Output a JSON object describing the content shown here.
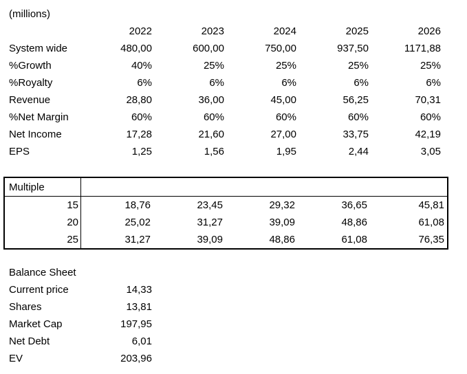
{
  "sheet": {
    "unit_label": "(millions)",
    "colors": {
      "text": "#000000",
      "background": "#ffffff",
      "table_border": "#000000"
    },
    "projections": {
      "years": [
        "2022",
        "2023",
        "2024",
        "2025",
        "2026"
      ],
      "rows": [
        {
          "label": "System wide",
          "values": [
            "480,00",
            "600,00",
            "750,00",
            "937,50",
            "1171,88"
          ]
        },
        {
          "label": "%Growth",
          "values": [
            "40%",
            "25%",
            "25%",
            "25%",
            "25%"
          ]
        },
        {
          "label": "%Royalty",
          "values": [
            "6%",
            "6%",
            "6%",
            "6%",
            "6%"
          ]
        },
        {
          "label": "Revenue",
          "values": [
            "28,80",
            "36,00",
            "45,00",
            "56,25",
            "70,31"
          ]
        },
        {
          "label": "%Net Margin",
          "values": [
            "60%",
            "60%",
            "60%",
            "60%",
            "60%"
          ]
        },
        {
          "label": "Net Income",
          "values": [
            "17,28",
            "21,60",
            "27,00",
            "33,75",
            "42,19"
          ]
        },
        {
          "label": "EPS",
          "values": [
            "1,25",
            "1,56",
            "1,95",
            "2,44",
            "3,05"
          ]
        }
      ]
    },
    "multiple_table": {
      "header": "Multiple",
      "rows": [
        {
          "multiple": "15",
          "values": [
            "18,76",
            "23,45",
            "29,32",
            "36,65",
            "45,81"
          ]
        },
        {
          "multiple": "20",
          "values": [
            "25,02",
            "31,27",
            "39,09",
            "48,86",
            "61,08"
          ]
        },
        {
          "multiple": "25",
          "values": [
            "31,27",
            "39,09",
            "48,86",
            "61,08",
            "76,35"
          ]
        }
      ]
    },
    "balance_sheet": {
      "title": "Balance Sheet",
      "rows": [
        {
          "label": "Current price",
          "value": "14,33"
        },
        {
          "label": "Shares",
          "value": "13,81"
        },
        {
          "label": "Market Cap",
          "value": "197,95"
        },
        {
          "label": "Net Debt",
          "value": "6,01"
        },
        {
          "label": "EV",
          "value": "203,96"
        }
      ]
    }
  }
}
